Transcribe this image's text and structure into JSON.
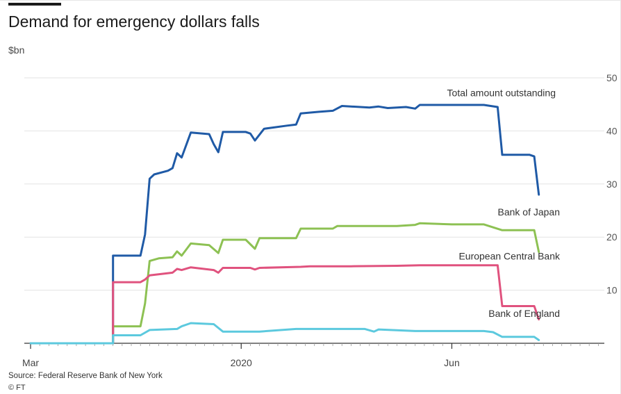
{
  "header": {
    "title": "Demand for emergency dollars falls",
    "unit": "$bn"
  },
  "footer": {
    "source": "Source: Federal Reserve Bank of New York",
    "credit": "© FT"
  },
  "chart_data": {
    "type": "line",
    "title": "Demand for emergency dollars falls",
    "ylabel": "$bn",
    "xlabel": "",
    "ylim": [
      0,
      50
    ],
    "yticks": [
      10,
      20,
      30,
      40,
      50
    ],
    "ytick_labels": [
      "10",
      "20",
      "30",
      "40",
      "50"
    ],
    "xlim": [
      "2020-03-01",
      "2020-07-04"
    ],
    "xticks": [
      {
        "date": "2020-03-01",
        "label": "Mar"
      },
      {
        "date": "2020-04-16",
        "label": "2020"
      },
      {
        "date": "2020-06-01",
        "label": "Jun"
      }
    ],
    "grid": "horizontal",
    "legend": "direct labels",
    "series": [
      {
        "name": "Total amount outstanding",
        "color": "#1f5aa6",
        "points": [
          [
            "2020-03-01",
            0
          ],
          [
            "2020-03-19",
            0
          ],
          [
            "2020-03-19",
            16.5
          ],
          [
            "2020-03-25",
            16.5
          ],
          [
            "2020-03-26",
            20.5
          ],
          [
            "2020-03-27",
            31
          ],
          [
            "2020-03-28",
            31.8
          ],
          [
            "2020-03-31",
            32.5
          ],
          [
            "2020-04-01",
            33
          ],
          [
            "2020-04-02",
            35.8
          ],
          [
            "2020-04-03",
            35
          ],
          [
            "2020-04-05",
            39.7
          ],
          [
            "2020-04-09",
            39.4
          ],
          [
            "2020-04-10",
            37.5
          ],
          [
            "2020-04-11",
            36
          ],
          [
            "2020-04-12",
            39.8
          ],
          [
            "2020-04-17",
            39.8
          ],
          [
            "2020-04-18",
            39.5
          ],
          [
            "2020-04-19",
            38.2
          ],
          [
            "2020-04-21",
            40.4
          ],
          [
            "2020-04-26",
            41
          ],
          [
            "2020-04-28",
            41.2
          ],
          [
            "2020-04-29",
            43.3
          ],
          [
            "2020-05-03",
            43.6
          ],
          [
            "2020-05-06",
            43.8
          ],
          [
            "2020-05-08",
            44.7
          ],
          [
            "2020-05-14",
            44.4
          ],
          [
            "2020-05-16",
            44.6
          ],
          [
            "2020-05-18",
            44.3
          ],
          [
            "2020-05-22",
            44.5
          ],
          [
            "2020-05-24",
            44.2
          ],
          [
            "2020-05-25",
            44.9
          ],
          [
            "2020-06-01",
            44.9
          ],
          [
            "2020-06-08",
            44.9
          ],
          [
            "2020-06-11",
            44.5
          ],
          [
            "2020-06-12",
            35.5
          ],
          [
            "2020-06-18",
            35.5
          ],
          [
            "2020-06-19",
            35.2
          ],
          [
            "2020-06-20",
            28
          ]
        ]
      },
      {
        "name": "Bank of Japan",
        "color": "#8dc153",
        "points": [
          [
            "2020-03-01",
            0
          ],
          [
            "2020-03-19",
            0
          ],
          [
            "2020-03-19",
            3.2
          ],
          [
            "2020-03-25",
            3.2
          ],
          [
            "2020-03-26",
            7.5
          ],
          [
            "2020-03-27",
            15.5
          ],
          [
            "2020-03-29",
            16
          ],
          [
            "2020-04-01",
            16.2
          ],
          [
            "2020-04-02",
            17.3
          ],
          [
            "2020-04-03",
            16.5
          ],
          [
            "2020-04-05",
            18.8
          ],
          [
            "2020-04-09",
            18.5
          ],
          [
            "2020-04-11",
            17
          ],
          [
            "2020-04-12",
            19.5
          ],
          [
            "2020-04-17",
            19.5
          ],
          [
            "2020-04-19",
            17.8
          ],
          [
            "2020-04-20",
            19.8
          ],
          [
            "2020-04-28",
            19.8
          ],
          [
            "2020-04-29",
            21.6
          ],
          [
            "2020-05-06",
            21.6
          ],
          [
            "2020-05-07",
            22.1
          ],
          [
            "2020-05-20",
            22.1
          ],
          [
            "2020-05-24",
            22.3
          ],
          [
            "2020-05-25",
            22.6
          ],
          [
            "2020-06-01",
            22.4
          ],
          [
            "2020-06-08",
            22.4
          ],
          [
            "2020-06-12",
            21.3
          ],
          [
            "2020-06-19",
            21.3
          ],
          [
            "2020-06-20",
            17.2
          ]
        ]
      },
      {
        "name": "European Central Bank",
        "color": "#e0527e",
        "points": [
          [
            "2020-03-01",
            0
          ],
          [
            "2020-03-19",
            0
          ],
          [
            "2020-03-19",
            11.5
          ],
          [
            "2020-03-25",
            11.5
          ],
          [
            "2020-03-26",
            12
          ],
          [
            "2020-03-27",
            12.8
          ],
          [
            "2020-04-01",
            13.3
          ],
          [
            "2020-04-02",
            14
          ],
          [
            "2020-04-03",
            13.8
          ],
          [
            "2020-04-05",
            14.3
          ],
          [
            "2020-04-10",
            13.8
          ],
          [
            "2020-04-11",
            13.3
          ],
          [
            "2020-04-12",
            14.2
          ],
          [
            "2020-04-18",
            14.2
          ],
          [
            "2020-04-19",
            13.9
          ],
          [
            "2020-04-20",
            14.2
          ],
          [
            "2020-04-29",
            14.4
          ],
          [
            "2020-05-01",
            14.5
          ],
          [
            "2020-05-10",
            14.5
          ],
          [
            "2020-05-20",
            14.6
          ],
          [
            "2020-05-25",
            14.7
          ],
          [
            "2020-06-11",
            14.7
          ],
          [
            "2020-06-12",
            7
          ],
          [
            "2020-06-19",
            7
          ],
          [
            "2020-06-20",
            4.5
          ]
        ]
      },
      {
        "name": "Bank of England",
        "color": "#5cc9de",
        "points": [
          [
            "2020-03-01",
            0
          ],
          [
            "2020-03-19",
            0
          ],
          [
            "2020-03-19",
            1.5
          ],
          [
            "2020-03-25",
            1.5
          ],
          [
            "2020-03-27",
            2.5
          ],
          [
            "2020-04-02",
            2.7
          ],
          [
            "2020-04-03",
            3.2
          ],
          [
            "2020-04-05",
            3.8
          ],
          [
            "2020-04-10",
            3.6
          ],
          [
            "2020-04-12",
            2.2
          ],
          [
            "2020-04-20",
            2.2
          ],
          [
            "2020-04-28",
            2.7
          ],
          [
            "2020-05-13",
            2.7
          ],
          [
            "2020-05-15",
            2.2
          ],
          [
            "2020-05-16",
            2.6
          ],
          [
            "2020-05-24",
            2.3
          ],
          [
            "2020-06-08",
            2.3
          ],
          [
            "2020-06-10",
            2.1
          ],
          [
            "2020-06-12",
            1.2
          ],
          [
            "2020-06-19",
            1.2
          ],
          [
            "2020-06-20",
            0.6
          ]
        ]
      }
    ]
  }
}
